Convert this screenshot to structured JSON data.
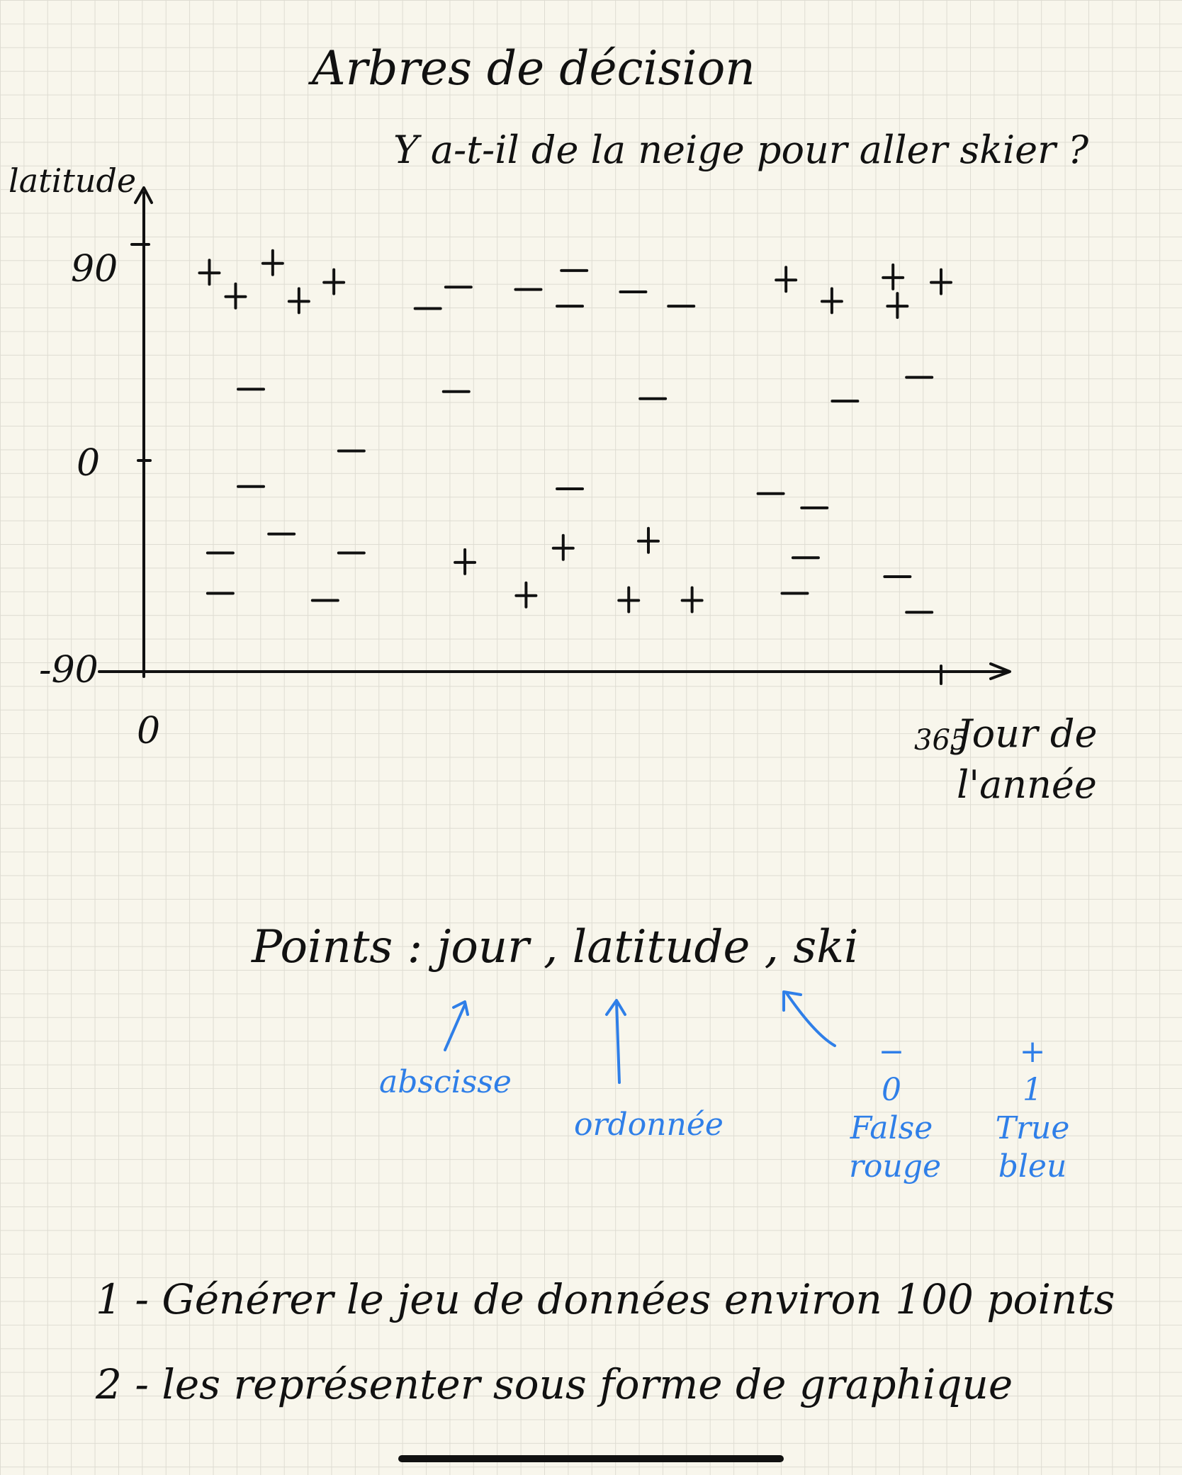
{
  "title": "Arbres de décision",
  "subtitle": "Y a-t-il de la neige pour aller skier ?",
  "chart_data": {
    "type": "scatter",
    "xlabel": "Jour de l'année",
    "ylabel": "latitude",
    "xlim": [
      0,
      365
    ],
    "ylim": [
      -90,
      90
    ],
    "x_ticks": [
      "0",
      "365"
    ],
    "y_ticks": [
      "90",
      "0",
      "-90"
    ],
    "legend": {
      "plus": "+",
      "minus": "−"
    },
    "series": [
      {
        "name": "+",
        "points": [
          [
            30,
            78
          ],
          [
            59,
            82
          ],
          [
            87,
            74
          ],
          [
            42,
            68
          ],
          [
            71,
            66
          ],
          [
            294,
            75
          ],
          [
            343,
            76
          ],
          [
            365,
            74
          ],
          [
            315,
            66
          ],
          [
            345,
            64
          ],
          [
            147,
            -44
          ],
          [
            192,
            -38
          ],
          [
            231,
            -35
          ],
          [
            175,
            -58
          ],
          [
            222,
            -60
          ],
          [
            251,
            -60
          ]
        ]
      },
      {
        "name": "-",
        "points": [
          [
            144,
            72
          ],
          [
            176,
            71
          ],
          [
            197,
            79
          ],
          [
            224,
            70
          ],
          [
            130,
            63
          ],
          [
            195,
            64
          ],
          [
            246,
            64
          ],
          [
            49,
            29
          ],
          [
            143,
            28
          ],
          [
            233,
            25
          ],
          [
            321,
            24
          ],
          [
            355,
            34
          ],
          [
            95,
            3
          ],
          [
            49,
            -12
          ],
          [
            195,
            -13
          ],
          [
            287,
            -15
          ],
          [
            307,
            -21
          ],
          [
            63,
            -32
          ],
          [
            35,
            -40
          ],
          [
            95,
            -40
          ],
          [
            303,
            -42
          ],
          [
            298,
            -57
          ],
          [
            345,
            -50
          ],
          [
            35,
            -57
          ],
          [
            83,
            -60
          ],
          [
            355,
            -65
          ]
        ]
      }
    ]
  },
  "points_text": {
    "prefix": "Points : ",
    "jour": "jour",
    "sep1": " , ",
    "latitude": "latitude",
    "sep2": " , ",
    "ski": "ski"
  },
  "annotations": {
    "abscisse": "abscisse",
    "ordonnee": "ordonnée",
    "minus_symbol": "−",
    "minus_value": "0",
    "minus_bool": "False",
    "minus_color": "rouge",
    "plus_symbol": "+",
    "plus_value": "1",
    "plus_bool": "True",
    "plus_color": "bleu"
  },
  "tasks": [
    "1 - Générer le jeu de données environ 100 points",
    "2 - les représenter sous forme de graphique"
  ],
  "colors": {
    "ink": "#111111",
    "blue_ink": "#2f7fe8",
    "paper": "#f8f6ec",
    "grid": "#dedcd2"
  }
}
